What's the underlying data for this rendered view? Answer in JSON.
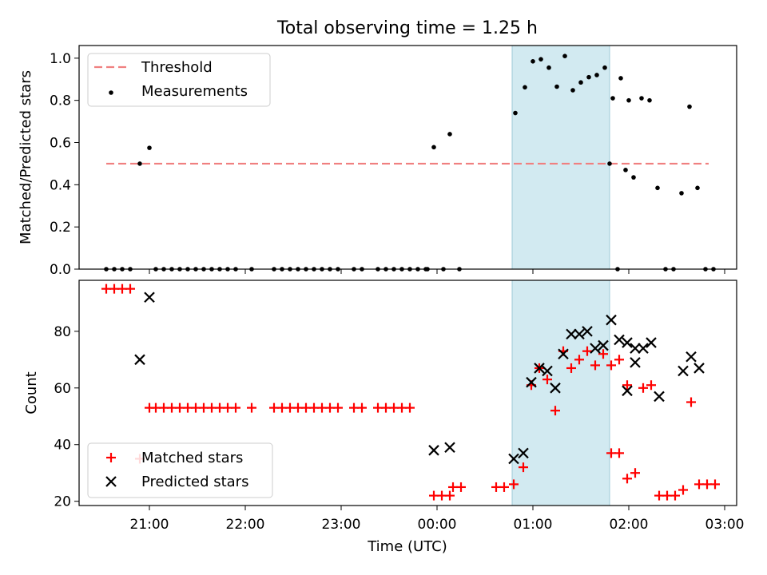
{
  "title": "Total observing time = 1.25 h",
  "colors": {
    "threshold": "#f08080",
    "measurement": "#000000",
    "matched": "#ff0000",
    "predicted": "#000000",
    "span": "#add8e6"
  },
  "chart_data": [
    {
      "type": "scatter",
      "ylabel": "Matched/Predicted stars",
      "xlabel": "",
      "ylim": [
        0,
        1.06
      ],
      "yticks": [
        0.0,
        0.2,
        0.4,
        0.6,
        0.8,
        1.0
      ],
      "ytick_labels": [
        "0.0",
        "0.2",
        "0.4",
        "0.6",
        "0.8",
        "1.0"
      ],
      "shaded_span": [
        "00:47",
        "01:48"
      ],
      "legend": {
        "placement": "upper left",
        "entries": [
          {
            "label": "Threshold",
            "marker": "dashed-line",
            "series": "threshold"
          },
          {
            "label": "Measurements",
            "marker": "dot",
            "series": "measurements"
          }
        ]
      },
      "threshold": {
        "y": 0.5,
        "x_start": "20:33",
        "x_end": "02:50"
      },
      "measurements": [
        [
          "20:33",
          0.0
        ],
        [
          "20:38",
          0.0
        ],
        [
          "20:43",
          0.0
        ],
        [
          "20:48",
          0.0
        ],
        [
          "20:54",
          0.5
        ],
        [
          "21:00",
          0.575
        ],
        [
          "21:04",
          0.0
        ],
        [
          "21:09",
          0.0
        ],
        [
          "21:14",
          0.0
        ],
        [
          "21:19",
          0.0
        ],
        [
          "21:24",
          0.0
        ],
        [
          "21:29",
          0.0
        ],
        [
          "21:34",
          0.0
        ],
        [
          "21:39",
          0.0
        ],
        [
          "21:44",
          0.0
        ],
        [
          "21:49",
          0.0
        ],
        [
          "21:54",
          0.0
        ],
        [
          "22:04",
          0.0
        ],
        [
          "22:18",
          0.0
        ],
        [
          "22:23",
          0.0
        ],
        [
          "22:28",
          0.0
        ],
        [
          "22:33",
          0.0
        ],
        [
          "22:38",
          0.0
        ],
        [
          "22:43",
          0.0
        ],
        [
          "22:48",
          0.0
        ],
        [
          "22:53",
          0.0
        ],
        [
          "22:58",
          0.0
        ],
        [
          "23:08",
          0.0
        ],
        [
          "23:13",
          0.0
        ],
        [
          "23:23",
          0.0
        ],
        [
          "23:28",
          0.0
        ],
        [
          "23:33",
          0.0
        ],
        [
          "23:38",
          0.0
        ],
        [
          "23:43",
          0.0
        ],
        [
          "23:48",
          0.0
        ],
        [
          "23:53",
          0.0
        ],
        [
          "23:58",
          0.578
        ],
        [
          "23:54",
          0.0
        ],
        [
          "00:04",
          0.0
        ],
        [
          "00:08",
          0.64
        ],
        [
          "00:14",
          0.0
        ],
        [
          "00:49",
          0.74
        ],
        [
          "00:55",
          0.862
        ],
        [
          "01:00",
          0.985
        ],
        [
          "01:05",
          0.995
        ],
        [
          "01:10",
          0.955
        ],
        [
          "01:15",
          0.865
        ],
        [
          "01:20",
          1.01
        ],
        [
          "01:25",
          0.848
        ],
        [
          "01:30",
          0.885
        ],
        [
          "01:35",
          0.91
        ],
        [
          "01:40",
          0.92
        ],
        [
          "01:45",
          0.955
        ],
        [
          "01:50",
          0.81
        ],
        [
          "01:55",
          0.905
        ],
        [
          "02:00",
          0.8
        ],
        [
          "01:48",
          0.5
        ],
        [
          "01:53",
          0.0
        ],
        [
          "01:58",
          0.47
        ],
        [
          "02:03",
          0.435
        ],
        [
          "02:08",
          0.81
        ],
        [
          "02:13",
          0.8
        ],
        [
          "02:18",
          0.385
        ],
        [
          "02:23",
          0.0
        ],
        [
          "02:28",
          0.0
        ],
        [
          "02:33",
          0.36
        ],
        [
          "02:38",
          0.77
        ],
        [
          "02:43",
          0.385
        ],
        [
          "02:48",
          0.0
        ],
        [
          "02:53",
          0.0
        ]
      ]
    },
    {
      "type": "scatter",
      "ylabel": "Count",
      "xlabel": "Time (UTC)",
      "ylim": [
        18.5,
        98
      ],
      "yticks": [
        20,
        40,
        60,
        80
      ],
      "ytick_labels": [
        "20",
        "40",
        "60",
        "80"
      ],
      "xticks": [
        "21:00",
        "22:00",
        "23:00",
        "00:00",
        "01:00",
        "02:00",
        "03:00"
      ],
      "shaded_span": [
        "00:47",
        "01:48"
      ],
      "legend": {
        "placement": "lower left",
        "entries": [
          {
            "label": "Matched stars",
            "marker": "plus",
            "series": "matched"
          },
          {
            "label": "Predicted stars",
            "marker": "x",
            "series": "predicted"
          }
        ]
      },
      "series": [
        {
          "name": "Matched stars",
          "marker": "plus",
          "points": [
            [
              "20:33",
              95
            ],
            [
              "20:38",
              95
            ],
            [
              "20:43",
              95
            ],
            [
              "20:48",
              95
            ],
            [
              "20:54",
              35
            ],
            [
              "21:00",
              53
            ],
            [
              "21:04",
              53
            ],
            [
              "21:09",
              53
            ],
            [
              "21:14",
              53
            ],
            [
              "21:19",
              53
            ],
            [
              "21:24",
              53
            ],
            [
              "21:29",
              53
            ],
            [
              "21:34",
              53
            ],
            [
              "21:39",
              53
            ],
            [
              "21:44",
              53
            ],
            [
              "21:49",
              53
            ],
            [
              "21:54",
              53
            ],
            [
              "22:04",
              53
            ],
            [
              "22:18",
              53
            ],
            [
              "22:23",
              53
            ],
            [
              "22:28",
              53
            ],
            [
              "22:33",
              53
            ],
            [
              "22:38",
              53
            ],
            [
              "22:43",
              53
            ],
            [
              "22:48",
              53
            ],
            [
              "22:53",
              53
            ],
            [
              "22:58",
              53
            ],
            [
              "23:08",
              53
            ],
            [
              "23:13",
              53
            ],
            [
              "23:23",
              53
            ],
            [
              "23:28",
              53
            ],
            [
              "23:33",
              53
            ],
            [
              "23:38",
              53
            ],
            [
              "23:43",
              53
            ],
            [
              "23:58",
              22
            ],
            [
              "00:03",
              22
            ],
            [
              "00:08",
              22
            ],
            [
              "00:10",
              25
            ],
            [
              "00:15",
              25
            ],
            [
              "00:37",
              25
            ],
            [
              "00:42",
              25
            ],
            [
              "00:48",
              26
            ],
            [
              "00:54",
              32
            ],
            [
              "00:59",
              61
            ],
            [
              "01:04",
              67
            ],
            [
              "01:09",
              63
            ],
            [
              "01:14",
              52
            ],
            [
              "01:19",
              73
            ],
            [
              "01:24",
              67
            ],
            [
              "01:29",
              70
            ],
            [
              "01:34",
              73
            ],
            [
              "01:39",
              68
            ],
            [
              "01:44",
              72
            ],
            [
              "01:49",
              68
            ],
            [
              "01:54",
              70
            ],
            [
              "01:59",
              61
            ],
            [
              "01:49",
              37
            ],
            [
              "01:54",
              37
            ],
            [
              "01:59",
              28
            ],
            [
              "02:04",
              30
            ],
            [
              "02:09",
              60
            ],
            [
              "02:14",
              61
            ],
            [
              "02:19",
              22
            ],
            [
              "02:24",
              22
            ],
            [
              "02:29",
              22
            ],
            [
              "02:34",
              24
            ],
            [
              "02:39",
              55
            ],
            [
              "02:44",
              26
            ],
            [
              "02:49",
              26
            ],
            [
              "02:54",
              26
            ]
          ]
        },
        {
          "name": "Predicted stars",
          "marker": "x",
          "points": [
            [
              "20:54",
              70
            ],
            [
              "21:00",
              92
            ],
            [
              "23:58",
              38
            ],
            [
              "00:08",
              39
            ],
            [
              "00:48",
              35
            ],
            [
              "00:54",
              37
            ],
            [
              "00:59",
              62
            ],
            [
              "01:04",
              67
            ],
            [
              "01:09",
              66
            ],
            [
              "01:14",
              60
            ],
            [
              "01:19",
              72
            ],
            [
              "01:24",
              79
            ],
            [
              "01:29",
              79
            ],
            [
              "01:34",
              80
            ],
            [
              "01:39",
              74
            ],
            [
              "01:44",
              75
            ],
            [
              "01:49",
              84
            ],
            [
              "01:54",
              77
            ],
            [
              "01:59",
              76
            ],
            [
              "02:04",
              74
            ],
            [
              "01:59",
              59
            ],
            [
              "02:04",
              69
            ],
            [
              "02:09",
              74
            ],
            [
              "02:14",
              76
            ],
            [
              "02:19",
              57
            ],
            [
              "02:34",
              66
            ],
            [
              "02:39",
              71
            ],
            [
              "02:44",
              67
            ]
          ]
        }
      ]
    }
  ]
}
